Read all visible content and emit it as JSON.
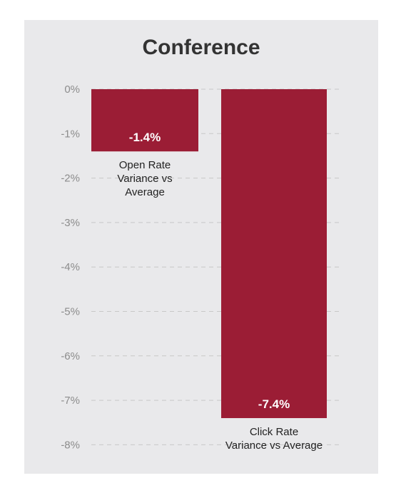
{
  "chart_data": {
    "type": "bar",
    "title": "Conference",
    "categories": [
      "Open Rate Variance vs Average",
      "Click Rate Variance vs Average"
    ],
    "category_lines": [
      [
        "Open Rate",
        "Variance vs",
        "Average"
      ],
      [
        "Click Rate",
        "Variance vs Average"
      ]
    ],
    "values": [
      -1.4,
      -7.4
    ],
    "data_labels": [
      "-1.4%",
      "-7.4%"
    ],
    "ylim": [
      -8,
      0
    ],
    "yticks": [
      0,
      -1,
      -2,
      -3,
      -4,
      -5,
      -6,
      -7,
      -8
    ],
    "ytick_labels": [
      "0%",
      "-1%",
      "-2%",
      "-3%",
      "-4%",
      "-5%",
      "-6%",
      "-7%",
      "-8%"
    ],
    "grid": true,
    "bar_color": "#9b1d35",
    "panel_color": "#e9e9eb"
  }
}
